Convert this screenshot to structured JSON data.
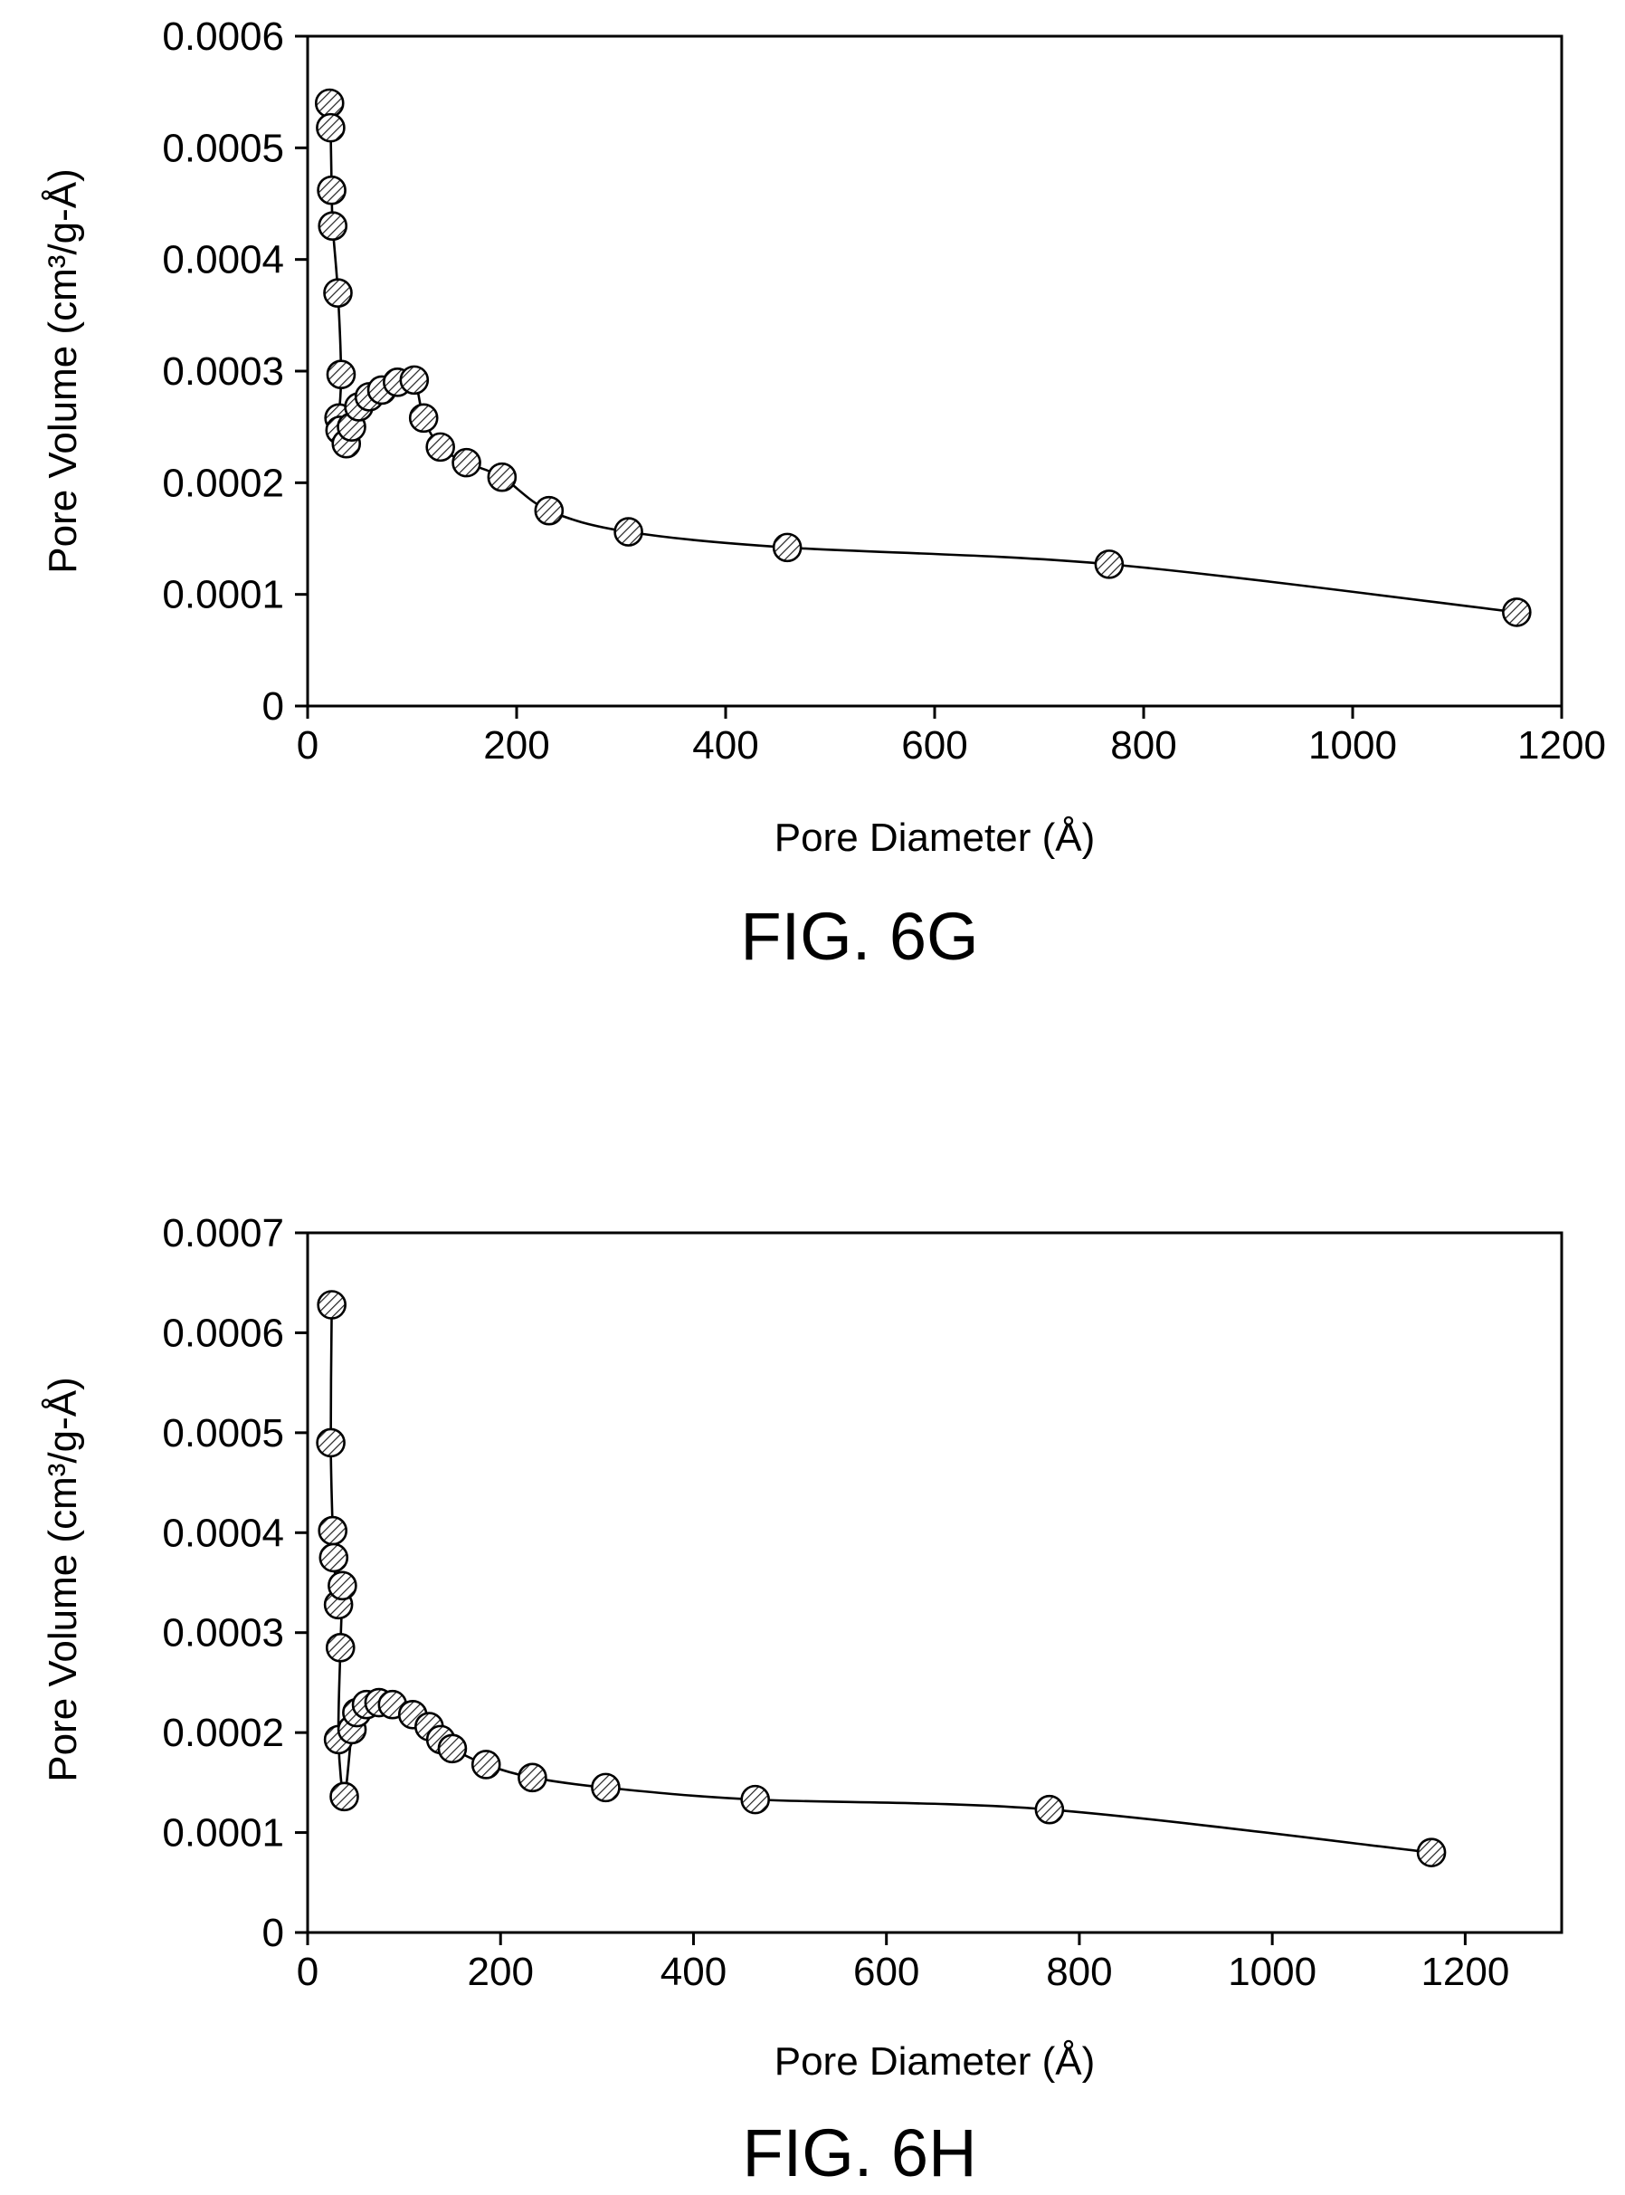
{
  "figures": [
    {
      "caption": "FIG. 6G",
      "xlabel": "Pore Diameter (Å)",
      "ylabel": "Pore Volume (cm³/g-Å)"
    },
    {
      "caption": "FIG. 6H",
      "xlabel": "Pore Diameter (Å)",
      "ylabel": "Pore Volume (cm³/g-Å)"
    }
  ],
  "chart_data": [
    {
      "type": "line",
      "title": "FIG. 6G",
      "xlabel": "Pore Diameter (Å)",
      "ylabel": "Pore Volume (cm³/g-Å)",
      "xlim": [
        0,
        1200
      ],
      "ylim": [
        0,
        0.0006
      ],
      "xticks": [
        0,
        200,
        400,
        600,
        800,
        1000,
        1200
      ],
      "xtick_labels": [
        "0",
        "200",
        "400",
        "600",
        "800",
        "1000",
        "1200"
      ],
      "yticks": [
        0,
        0.0001,
        0.0002,
        0.0003,
        0.0004,
        0.0005,
        0.0006
      ],
      "ytick_labels": [
        "0",
        "0.0001",
        "0.0002",
        "0.0003",
        "0.0004",
        "0.0005",
        "0.0006"
      ],
      "grid": false,
      "marker": "hatched-circle",
      "series": [
        {
          "x": [
            21,
            22,
            23,
            24,
            29,
            32,
            30,
            31,
            37,
            42,
            49,
            59,
            71,
            86,
            102,
            111,
            127,
            152,
            186,
            231,
            307,
            459,
            767,
            1157
          ],
          "y": [
            0.00054,
            0.000518,
            0.000462,
            0.00043,
            0.00037,
            0.000297,
            0.000258,
            0.000247,
            0.000235,
            0.00025,
            0.000268,
            0.000277,
            0.000283,
            0.00029,
            0.000292,
            0.000258,
            0.000232,
            0.000218,
            0.000205,
            0.000175,
            0.000156,
            0.000142,
            0.000127,
            8.4e-05
          ]
        }
      ]
    },
    {
      "type": "line",
      "title": "FIG. 6H",
      "xlabel": "Pore Diameter (Å)",
      "ylabel": "Pore Volume (cm³/g-Å)",
      "xlim": [
        0,
        1300
      ],
      "ylim": [
        0,
        0.0007
      ],
      "xticks": [
        0,
        200,
        400,
        600,
        800,
        1000,
        1200
      ],
      "xtick_labels": [
        "0",
        "200",
        "400",
        "600",
        "800",
        "1000",
        "1200"
      ],
      "yticks": [
        0,
        0.0001,
        0.0002,
        0.0003,
        0.0004,
        0.0005,
        0.0006,
        0.0007
      ],
      "ytick_labels": [
        "0",
        "0.0001",
        "0.0002",
        "0.0003",
        "0.0004",
        "0.0005",
        "0.0006",
        "0.0007"
      ],
      "grid": false,
      "marker": "hatched-circle",
      "series": [
        {
          "x": [
            25,
            24,
            26,
            27,
            32,
            36,
            34,
            32,
            38,
            46,
            51,
            61,
            74,
            88,
            109,
            126,
            138,
            150,
            185,
            233,
            309,
            464,
            769,
            1165
          ],
          "y": [
            0.000628,
            0.00049,
            0.000402,
            0.000375,
            0.000328,
            0.000347,
            0.000285,
            0.000193,
            0.000136,
            0.000203,
            0.00022,
            0.000228,
            0.00023,
            0.000228,
            0.000218,
            0.000206,
            0.000193,
            0.000184,
            0.000168,
            0.000155,
            0.000145,
            0.000133,
            0.000123,
            8e-05
          ]
        }
      ]
    }
  ]
}
